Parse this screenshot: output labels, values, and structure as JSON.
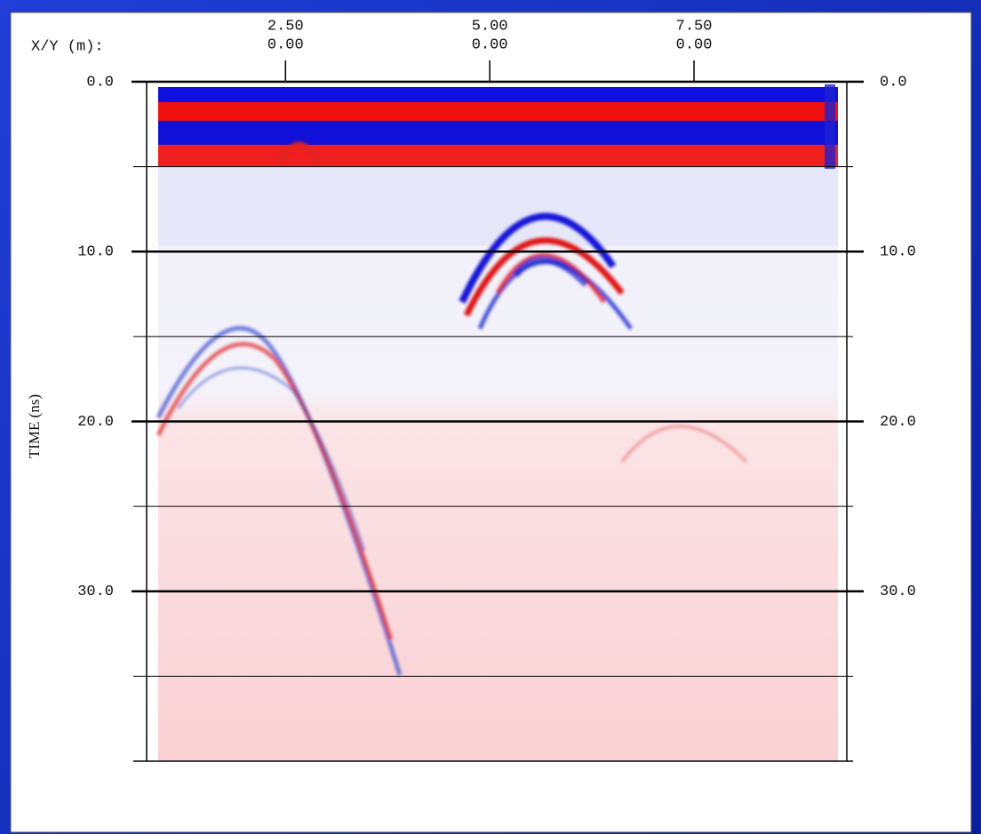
{
  "chart_data": {
    "type": "radargram",
    "x_label": "X/Y (m):",
    "y_label": "TIME (ns)",
    "xlim": [
      0.8,
      9.37
    ],
    "xticks": [
      {
        "value": 2.5,
        "label": "2.50"
      },
      {
        "value": 5,
        "label": "5.00"
      },
      {
        "value": 7.5,
        "label": "7.50"
      }
    ],
    "xticks_y": [
      "0.00",
      "0.00",
      "0.00"
    ],
    "ylim": [
      0,
      40
    ],
    "yticks": [
      {
        "value": 0,
        "label": "0.0"
      },
      {
        "value": 10,
        "label": "10.0"
      },
      {
        "value": 20,
        "label": "20.0"
      },
      {
        "value": 30,
        "label": "30.0"
      }
    ],
    "minor_yticks": [
      5,
      15,
      25,
      35
    ]
  }
}
